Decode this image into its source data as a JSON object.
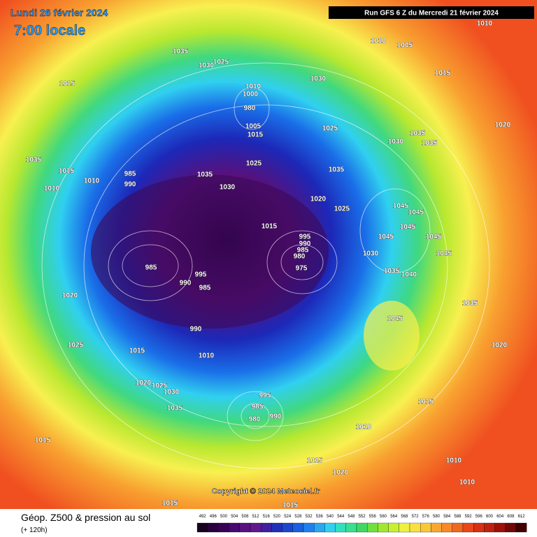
{
  "header": {
    "date": "Lundi 26 février 2024",
    "time": "7:00 locale",
    "run": "Run GFS 6 Z du Mercredi 21 février 2024"
  },
  "copyright": "Copyright © 2024 Meteociel.fr",
  "footer": {
    "title": "Géop. Z500 & pression au sol",
    "lead": "(+ 120h)"
  },
  "scale": [
    492,
    496,
    500,
    504,
    508,
    512,
    516,
    520,
    524,
    528,
    532,
    536,
    540,
    544,
    548,
    552,
    556,
    560,
    564,
    568,
    572,
    576,
    580,
    584,
    588,
    592,
    596,
    600,
    604,
    608,
    612
  ],
  "pressure_labels": [
    1035,
    1030,
    1025,
    1015,
    1010,
    1000,
    980,
    1005,
    1015,
    1030,
    1025,
    1010,
    1005,
    1015,
    1020,
    1030,
    1035,
    1035,
    1035,
    1015,
    1010,
    1010,
    985,
    990,
    1035,
    1030,
    1025,
    1035,
    1020,
    1025,
    1015,
    1045,
    1045,
    1045,
    995,
    990,
    985,
    980,
    975,
    1045,
    1030,
    1035,
    1040,
    1045,
    1045,
    985,
    995,
    990,
    985,
    1020,
    1045,
    1035,
    1020,
    1025,
    1015,
    1010,
    990,
    1020,
    1025,
    1030,
    1035,
    995,
    985,
    980,
    990,
    1010,
    1015,
    1015,
    1015,
    1020,
    1010,
    1010,
    1015,
    1015,
    1010
  ]
}
